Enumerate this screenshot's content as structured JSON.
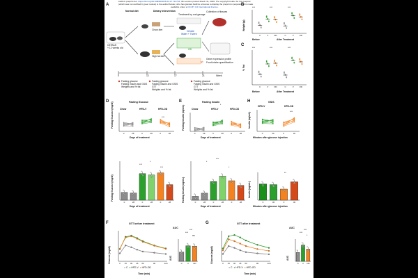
{
  "header": {
    "line1_prefix": "bioRxiv preprint doi: ",
    "doi_link": "https://doi.org/10.64898/2026.03.27.714733",
    "line1_suffix": "; this version posted March 31, 2026. The copyright holder for this preprint",
    "line2": "(which was not certified by peer review) is the author/funder, who has granted bioRxiv a license to display the preprint in perpetuity. It is made",
    "line3_prefix": "available under a",
    "license_link": "CC-BY 4.0 International license",
    "line3_suffix": "."
  },
  "panel_labels": {
    "a": "A",
    "b": "B",
    "c": "C",
    "d": "D",
    "e": "E",
    "h": "H",
    "f": "F",
    "g": "G"
  },
  "panel_a": {
    "normal_diet": "Normal diet",
    "dietary_intervention": "Dietary intervention",
    "chow_diet": "Chow diet",
    "high_fat_diet": "High fat diet",
    "mice": "C57BL/6",
    "mice_age": "+ 12 weeks old",
    "treatment_box": "Treatment by oral gavage",
    "vehicle": "Vehicle",
    "water_tween": "Water + Tween",
    "od": "OD",
    "od_dose": "OD (2.5 - 5mg/kg/day)",
    "collection": "Collection of tissues",
    "gene_expression": "Gene expression profile",
    "food_quant": "Food intake quantification",
    "timeline_label": "Week",
    "timeline_ticks": [
      "0",
      "12",
      "17",
      "21"
    ],
    "legend_before": [
      "Fasting glucose",
      "Fasting insulin and GSIS",
      "Weights and % fat"
    ],
    "legend_middle": [
      "Fasting glucose",
      "Fasting insulin and GSIS",
      "GTT",
      "Weights and % fat"
    ],
    "legend_after": [
      "Fasting glucose",
      "Fasting insulin and GSIS",
      "GTT",
      "Weights and % fat"
    ]
  },
  "panel_b": {
    "ylabel": "Weight (g)",
    "groups": [
      "C",
      "V",
      "OD"
    ],
    "phases": [
      "Before",
      "After Treatment"
    ],
    "sig": [
      "***",
      "***",
      "***"
    ]
  },
  "panel_c": {
    "ylabel": "% Fat",
    "groups": [
      "C",
      "V",
      "OD"
    ],
    "phases": [
      "Before",
      "After Treatment"
    ],
    "sig": [
      "***",
      "***",
      "***"
    ]
  },
  "panel_d": {
    "title": "Fasting Glucose",
    "ylabel_top": "Fasting Glucose (mg/dl)",
    "xlabel": "Days of treatment",
    "groups": [
      "Chow",
      "HFD-V",
      "HFD-OD"
    ],
    "sig": [
      "***",
      "*",
      "***"
    ]
  },
  "panel_e": {
    "title": "Fasting Insulin",
    "ylabel_top": "Fasting Insulin (ng/mL)",
    "xlabel": "Days of treatment",
    "groups": [
      "Chow",
      "HFD-V",
      "HFD-OD"
    ],
    "sig": [
      "*",
      "***",
      "*"
    ]
  },
  "panel_h": {
    "title": "GSIS",
    "ylabel_top": "Insulin (ng/mL)",
    "xlabel": "Minutes after glucose injection",
    "groups": [
      "HFD-V",
      "HFD-OD"
    ],
    "sig": [
      "***",
      "**"
    ]
  },
  "panel_f": {
    "title": "GTT before treatment",
    "auc_title": "AUC",
    "ylabel": "Glucose (mg/dl)",
    "xlabel": "Time (min)",
    "auc_ylabel": "AUC",
    "legend": [
      "C",
      "HFD-V",
      "HFD-OD"
    ],
    "sig": [
      "***",
      "***",
      "ns"
    ]
  },
  "panel_g": {
    "title": "GTT after treatment",
    "auc_title": "AUC",
    "ylabel": "Glucose (mg/dl)",
    "xlabel": "Time (min)",
    "auc_ylabel": "AUC",
    "legend": [
      "C",
      "HFD-V",
      "HFD-OD"
    ],
    "sig": [
      "***",
      "***",
      "*"
    ]
  },
  "colors": {
    "chow": "#8c8c8c",
    "hfdv": "#2ca02c",
    "hfdod": "#f58220",
    "od_dark": "#d44a1b",
    "green_light": "#7fd36a",
    "green_dark": "#1b8f1b"
  },
  "chart_data": [
    {
      "id": "b",
      "type": "scatter",
      "title": "",
      "ylabel": "Weight (g)",
      "ylim": [
        20,
        55
      ],
      "categories": [
        "C",
        "V",
        "OD",
        "C",
        "V",
        "OD"
      ],
      "values": [
        32,
        41,
        40,
        31,
        46,
        44
      ]
    },
    {
      "id": "c",
      "type": "scatter",
      "title": "",
      "ylabel": "% Fat",
      "ylim": [
        0,
        50
      ],
      "categories": [
        "C",
        "V",
        "OD",
        "C",
        "V",
        "OD"
      ],
      "values": [
        15,
        30,
        31,
        14,
        35,
        33
      ]
    },
    {
      "id": "d_top",
      "type": "line",
      "title": "Fasting Glucose",
      "xlabel": "Days of treatment",
      "ylabel": "Fasting Glucose (mg/dl)",
      "ylim": [
        0,
        400
      ],
      "series": [
        {
          "name": "Chow",
          "x": [
            0,
            28
          ],
          "values": [
            150,
            148
          ]
        },
        {
          "name": "HFD-V",
          "x": [
            0,
            28
          ],
          "values": [
            200,
            230
          ]
        },
        {
          "name": "HFD-OD",
          "x": [
            0,
            28
          ],
          "values": [
            215,
            140
          ]
        }
      ]
    },
    {
      "id": "d_bar",
      "type": "bar",
      "title": "",
      "xlabel": "Days of treatment",
      "ylabel": "Fasting Glucose (mg/dl)",
      "ylim": [
        0,
        300
      ],
      "categories": [
        "0",
        "28",
        "0",
        "28",
        "0",
        "28"
      ],
      "series": [
        {
          "name": "mean",
          "values": [
            60,
            55,
            205,
            195,
            210,
            120
          ]
        }
      ]
    },
    {
      "id": "e_top",
      "type": "line",
      "title": "Fasting Insulin",
      "xlabel": "Days of treatment",
      "ylabel": "Fasting Insulin (ng/mL)",
      "ylim": [
        0,
        6
      ],
      "series": [
        {
          "name": "Chow",
          "x": [
            0,
            28
          ],
          "values": [
            0.6,
            0.7
          ]
        },
        {
          "name": "HFD-V",
          "x": [
            0,
            28
          ],
          "values": [
            2.4,
            3.0
          ]
        },
        {
          "name": "HFD-OD",
          "x": [
            0,
            28
          ],
          "values": [
            2.6,
            1.8
          ]
        }
      ]
    },
    {
      "id": "e_bar",
      "type": "bar",
      "title": "",
      "xlabel": "Days of treatment",
      "ylabel": "Fasting Insulin (ng/mL)",
      "ylim": [
        0,
        5
      ],
      "categories": [
        "0",
        "28",
        "0",
        "28",
        "0",
        "28"
      ],
      "series": [
        {
          "name": "mean",
          "values": [
            0.5,
            0.9,
            2.4,
            3.1,
            2.5,
            1.9
          ]
        }
      ]
    },
    {
      "id": "h_top",
      "type": "line",
      "title": "GSIS",
      "xlabel": "Minutes after glucose injection",
      "ylabel": "Insulin (ng/mL)",
      "ylim": [
        0,
        6
      ],
      "series": [
        {
          "name": "HFD-V",
          "x": [
            0,
            30
          ],
          "values": [
            2.8,
            2.7
          ]
        },
        {
          "name": "HFD-OD",
          "x": [
            0,
            30
          ],
          "values": [
            2.0,
            3.2
          ]
        }
      ]
    },
    {
      "id": "h_bar",
      "type": "bar",
      "title": "",
      "xlabel": "Minutes after glucose injection",
      "ylabel": "Insulin (ng/mL)",
      "ylim": [
        0,
        5
      ],
      "categories": [
        "0",
        "30",
        "0",
        "30"
      ],
      "series": [
        {
          "name": "mean",
          "values": [
            2.9,
            2.8,
            2.0,
            3.3
          ]
        }
      ]
    },
    {
      "id": "f",
      "type": "line",
      "title": "GTT before treatment",
      "xlabel": "Time (min)",
      "ylabel": "Glucose (mg/dl)",
      "ylim": [
        0,
        500
      ],
      "x": [
        0,
        15,
        30,
        45,
        60,
        90,
        120
      ],
      "series": [
        {
          "name": "C",
          "values": [
            130,
            260,
            230,
            190,
            160,
            140,
            120
          ]
        },
        {
          "name": "HFD-V",
          "values": [
            200,
            400,
            420,
            380,
            330,
            260,
            210
          ]
        },
        {
          "name": "HFD-OD",
          "values": [
            205,
            390,
            410,
            370,
            320,
            255,
            205
          ]
        }
      ]
    },
    {
      "id": "f_auc",
      "type": "bar",
      "title": "AUC",
      "ylabel": "AUC",
      "ylim": [
        0,
        60000
      ],
      "categories": [
        "C",
        "V",
        "OD"
      ],
      "series": [
        {
          "name": "AUC",
          "values": [
            25000,
            42000,
            41000
          ]
        }
      ]
    },
    {
      "id": "g",
      "type": "line",
      "title": "GTT after treatment",
      "xlabel": "Time (min)",
      "ylabel": "Glucose (mg/dl)",
      "ylim": [
        0,
        500
      ],
      "x": [
        0,
        15,
        30,
        45,
        60,
        90,
        120
      ],
      "series": [
        {
          "name": "C",
          "values": [
            120,
            250,
            220,
            180,
            150,
            130,
            115
          ]
        },
        {
          "name": "HFD-V",
          "values": [
            210,
            410,
            430,
            390,
            340,
            270,
            220
          ]
        },
        {
          "name": "HFD-OD",
          "values": [
            180,
            360,
            330,
            290,
            250,
            200,
            170
          ]
        }
      ]
    },
    {
      "id": "g_auc",
      "type": "bar",
      "title": "AUC",
      "ylabel": "AUC",
      "ylim": [
        0,
        60000
      ],
      "categories": [
        "C",
        "V",
        "OD"
      ],
      "series": [
        {
          "name": "AUC",
          "values": [
            24000,
            44000,
            33000
          ]
        }
      ]
    }
  ]
}
